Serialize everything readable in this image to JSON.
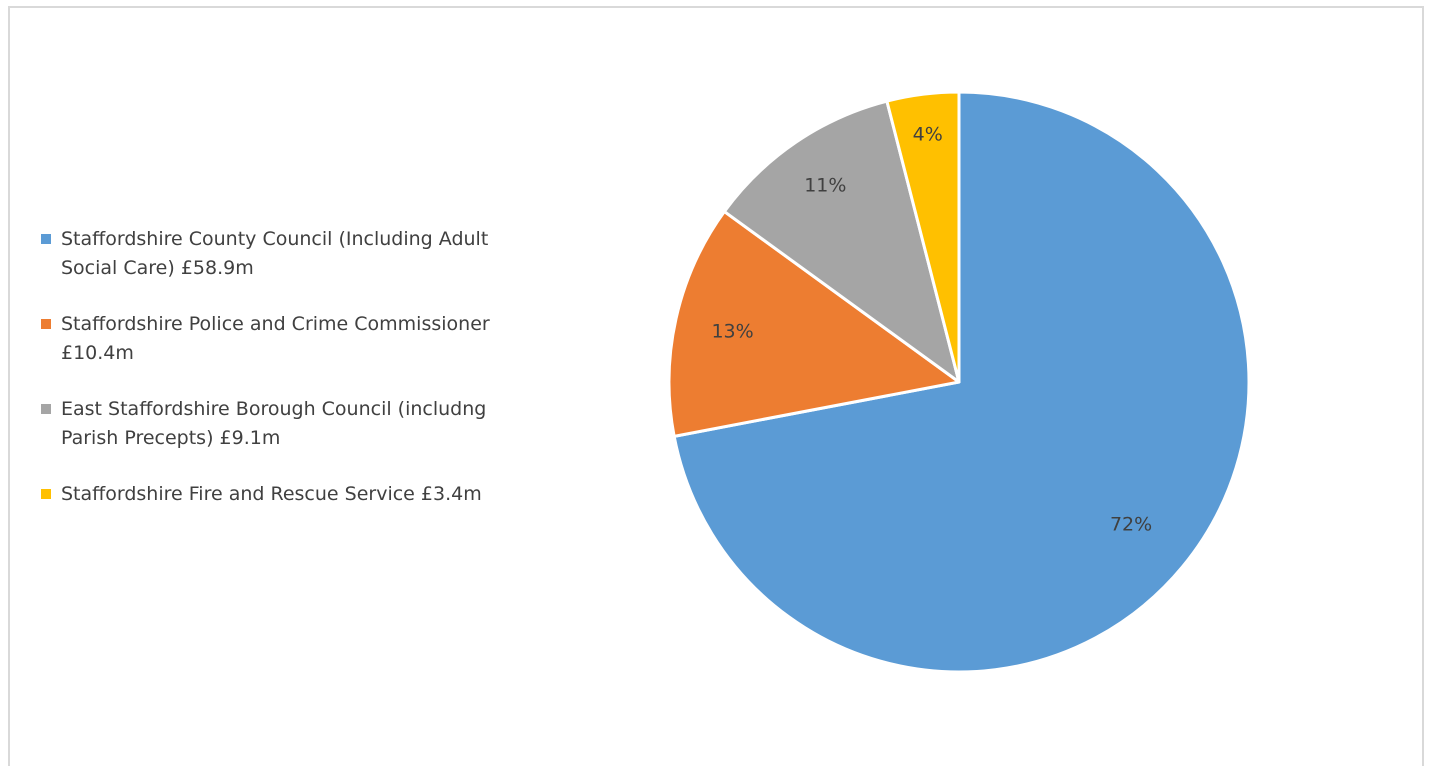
{
  "chart_data": {
    "type": "pie",
    "title": "",
    "legend_position": "left",
    "slices": [
      {
        "name": "Staffordshire County Council (Including Adult Social Care) £58.9m",
        "value": 72,
        "label": "72%",
        "color": "#5b9bd5"
      },
      {
        "name": "Staffordshire Police and Crime Commissioner £10.4m",
        "value": 13,
        "label": "13%",
        "color": "#ed7d31"
      },
      {
        "name": "East Staffordshire Borough Council (includng Parish Precepts) £9.1m",
        "value": 11,
        "label": "11%",
        "color": "#a5a5a5"
      },
      {
        "name": "Staffordshire Fire and Rescue Service £3.4m",
        "value": 4,
        "label": "4%",
        "color": "#ffc000"
      }
    ]
  }
}
